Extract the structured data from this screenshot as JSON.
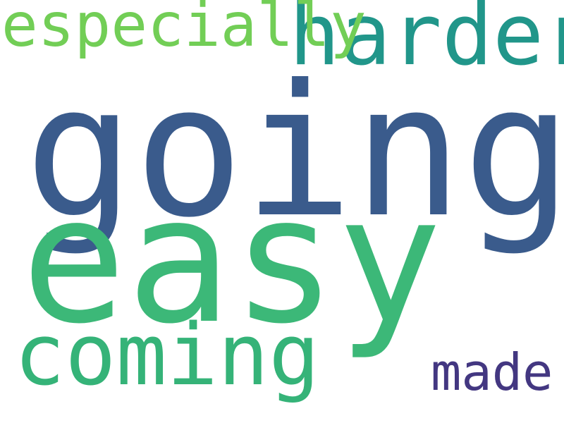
{
  "words": [
    {
      "text": "going",
      "color": "#3a5b8c"
    },
    {
      "text": "easy",
      "color": "#3cb878"
    },
    {
      "text": "harder",
      "color": "#21968a"
    },
    {
      "text": "especially",
      "color": "#72ce56"
    },
    {
      "text": "coming",
      "color": "#35b378"
    },
    {
      "text": "made",
      "color": "#433781"
    }
  ],
  "background": "#ffffff"
}
